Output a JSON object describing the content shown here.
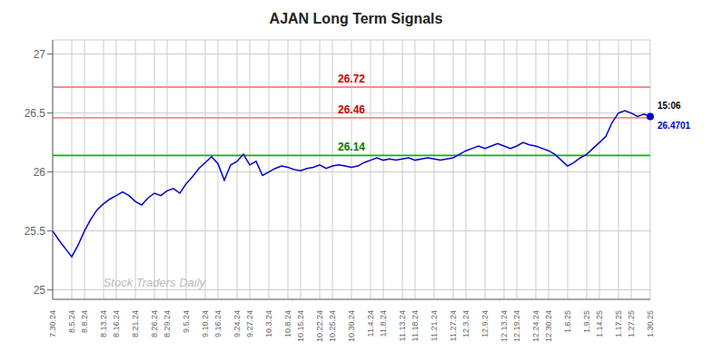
{
  "chart_data": {
    "type": "line",
    "title": "AJAN Long Term Signals",
    "watermark": "Stock Traders Daily",
    "categories": [
      "7.30.24",
      null,
      null,
      "8.5.24",
      null,
      "8.8.24",
      null,
      null,
      "8.13.24",
      null,
      "8.16.24",
      null,
      null,
      "8.21.24",
      null,
      null,
      "8.26.24",
      null,
      "8.29.24",
      null,
      null,
      "9.5.24",
      null,
      null,
      "9.10.24",
      null,
      "9.16.24",
      null,
      null,
      "9.24.24",
      null,
      "9.27.24",
      null,
      null,
      "10.3.24",
      null,
      null,
      "10.8.24",
      null,
      "10.15.24",
      null,
      null,
      "10.22.24",
      null,
      "10.25.24",
      null,
      null,
      "10.30.24",
      null,
      null,
      "11.4.24",
      null,
      "11.8.24",
      null,
      null,
      "11.13.24",
      null,
      "11.18.24",
      null,
      null,
      "11.21.24",
      null,
      null,
      "11.27.24",
      null,
      "12.3.24",
      null,
      null,
      "12.9.24",
      null,
      null,
      "12.13.24",
      null,
      "12.19.24",
      null,
      null,
      "12.24.24",
      null,
      "12.30.24",
      null,
      null,
      "1.6.25",
      null,
      null,
      "1.9.25",
      null,
      "1.14.25",
      null,
      null,
      "1.17.25",
      null,
      "1.27.25",
      null,
      null,
      "1.30.25"
    ],
    "values": [
      25.5,
      25.42,
      25.35,
      25.28,
      25.38,
      25.5,
      25.6,
      25.68,
      25.73,
      25.77,
      25.8,
      25.83,
      25.8,
      25.75,
      25.72,
      25.78,
      25.82,
      25.8,
      25.84,
      25.86,
      25.82,
      25.9,
      25.96,
      26.03,
      26.08,
      26.13,
      26.07,
      25.93,
      26.06,
      26.09,
      26.15,
      26.06,
      26.09,
      25.97,
      26.0,
      26.03,
      26.05,
      26.04,
      26.02,
      26.01,
      26.03,
      26.04,
      26.06,
      26.03,
      26.05,
      26.06,
      26.05,
      26.04,
      26.05,
      26.08,
      26.1,
      26.12,
      26.1,
      26.11,
      26.1,
      26.11,
      26.12,
      26.1,
      26.11,
      26.12,
      26.11,
      26.1,
      26.11,
      26.12,
      26.15,
      26.18,
      26.2,
      26.22,
      26.2,
      26.22,
      26.24,
      26.22,
      26.2,
      26.22,
      26.25,
      26.23,
      26.22,
      26.2,
      26.18,
      26.15,
      26.1,
      26.05,
      26.08,
      26.12,
      26.15,
      26.2,
      26.25,
      26.3,
      26.42,
      26.5,
      26.52,
      26.5,
      26.47,
      26.49,
      26.4701
    ],
    "color": "#0000cc",
    "ylim": [
      24.92,
      27.12
    ],
    "yticks": [
      25,
      25.5,
      26,
      26.5,
      27
    ],
    "grid": true,
    "reference_lines": [
      {
        "value": 26.14,
        "label": "26.14",
        "color": "#00bb00",
        "label_color": "#007700"
      },
      {
        "value": 26.46,
        "label": "26.46",
        "color": "#ff8888",
        "label_color": "#cc0000"
      },
      {
        "value": 26.72,
        "label": "26.72",
        "color": "#ff8888",
        "label_color": "#cc0000"
      }
    ],
    "last_point": {
      "time": "15:06",
      "label": "26.4701",
      "color": "#0000cc"
    }
  }
}
